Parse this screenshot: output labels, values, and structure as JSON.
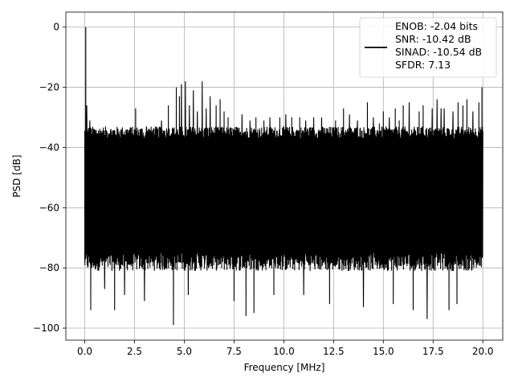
{
  "chart_data": {
    "type": "line",
    "xlabel": "Frequency [MHz]",
    "ylabel": "PSD [dB]",
    "xlim": [
      -0.95,
      21.0
    ],
    "ylim": [
      -104,
      5
    ],
    "xticks": [
      0.0,
      2.5,
      5.0,
      7.5,
      10.0,
      12.5,
      15.0,
      17.5,
      20.0
    ],
    "xtick_labels": [
      "0.0",
      "2.5",
      "5.0",
      "7.5",
      "10.0",
      "12.5",
      "15.0",
      "17.5",
      "20.0"
    ],
    "yticks": [
      0,
      -20,
      -40,
      -60,
      -80,
      -100
    ],
    "ytick_labels": [
      "0",
      "−20",
      "−40",
      "−60",
      "−80",
      "−100"
    ],
    "grid": true,
    "legend_position": "upper-right",
    "legend_entries": [
      "ENOB: -2.04 bits",
      "SNR: -10.42 dB",
      "SINAD: -10.54 dB",
      "SFDR: 7.13"
    ],
    "series": [
      {
        "color": "#000000",
        "noise_band": {
          "x_range": [
            0.0,
            20.0
          ],
          "top": -36,
          "bottom": -79
        },
        "dc_peak": {
          "x": 0.05,
          "y": 0.0
        },
        "spur_peaks": [
          {
            "x": 0.1,
            "y": -26
          },
          {
            "x": 0.25,
            "y": -31
          },
          {
            "x": 2.25,
            "y": -34
          },
          {
            "x": 2.55,
            "y": -27
          },
          {
            "x": 3.1,
            "y": -33
          },
          {
            "x": 3.45,
            "y": -34
          },
          {
            "x": 3.85,
            "y": -31
          },
          {
            "x": 4.2,
            "y": -26
          },
          {
            "x": 4.45,
            "y": -22
          },
          {
            "x": 4.6,
            "y": -20
          },
          {
            "x": 4.75,
            "y": -23
          },
          {
            "x": 4.85,
            "y": -19
          },
          {
            "x": 5.05,
            "y": -18
          },
          {
            "x": 5.25,
            "y": -26
          },
          {
            "x": 5.45,
            "y": -21
          },
          {
            "x": 5.65,
            "y": -28
          },
          {
            "x": 5.9,
            "y": -18
          },
          {
            "x": 6.1,
            "y": -27
          },
          {
            "x": 6.3,
            "y": -23
          },
          {
            "x": 6.6,
            "y": -26
          },
          {
            "x": 6.8,
            "y": -24
          },
          {
            "x": 7.0,
            "y": -28
          },
          {
            "x": 7.2,
            "y": -30
          },
          {
            "x": 7.5,
            "y": -27
          },
          {
            "x": 7.9,
            "y": -29
          },
          {
            "x": 8.3,
            "y": -31
          },
          {
            "x": 8.6,
            "y": -30
          },
          {
            "x": 9.0,
            "y": -31
          },
          {
            "x": 9.3,
            "y": -30
          },
          {
            "x": 9.8,
            "y": -30
          },
          {
            "x": 10.1,
            "y": -29
          },
          {
            "x": 10.4,
            "y": -30
          },
          {
            "x": 10.8,
            "y": -30
          },
          {
            "x": 11.1,
            "y": -31
          },
          {
            "x": 11.5,
            "y": -30
          },
          {
            "x": 11.9,
            "y": -30
          },
          {
            "x": 12.3,
            "y": -30
          },
          {
            "x": 12.6,
            "y": -31
          },
          {
            "x": 13.0,
            "y": -27
          },
          {
            "x": 13.3,
            "y": -29
          },
          {
            "x": 13.7,
            "y": -31
          },
          {
            "x": 14.0,
            "y": -27
          },
          {
            "x": 14.2,
            "y": -25
          },
          {
            "x": 14.5,
            "y": -30
          },
          {
            "x": 14.8,
            "y": -32
          },
          {
            "x": 15.0,
            "y": -28
          },
          {
            "x": 15.3,
            "y": -30
          },
          {
            "x": 15.6,
            "y": -27
          },
          {
            "x": 15.8,
            "y": -31
          },
          {
            "x": 16.0,
            "y": -26
          },
          {
            "x": 16.3,
            "y": -25
          },
          {
            "x": 16.5,
            "y": -23
          },
          {
            "x": 16.8,
            "y": -28
          },
          {
            "x": 17.0,
            "y": -26
          },
          {
            "x": 17.2,
            "y": -24
          },
          {
            "x": 17.45,
            "y": -27
          },
          {
            "x": 17.7,
            "y": -24
          },
          {
            "x": 17.9,
            "y": -27
          },
          {
            "x": 18.05,
            "y": -27
          },
          {
            "x": 18.3,
            "y": -23
          },
          {
            "x": 18.5,
            "y": -28
          },
          {
            "x": 18.75,
            "y": -25
          },
          {
            "x": 19.0,
            "y": -26
          },
          {
            "x": 19.2,
            "y": -24
          },
          {
            "x": 19.5,
            "y": -28
          },
          {
            "x": 19.8,
            "y": -25
          },
          {
            "x": 19.95,
            "y": -20
          }
        ],
        "deep_dips": [
          {
            "x": 0.3,
            "y": -94
          },
          {
            "x": 1.0,
            "y": -87
          },
          {
            "x": 1.5,
            "y": -94
          },
          {
            "x": 2.0,
            "y": -89
          },
          {
            "x": 3.0,
            "y": -91
          },
          {
            "x": 4.45,
            "y": -99
          },
          {
            "x": 5.2,
            "y": -89
          },
          {
            "x": 7.5,
            "y": -91
          },
          {
            "x": 8.1,
            "y": -96
          },
          {
            "x": 8.5,
            "y": -95
          },
          {
            "x": 9.5,
            "y": -89
          },
          {
            "x": 11.0,
            "y": -89
          },
          {
            "x": 12.3,
            "y": -92
          },
          {
            "x": 14.0,
            "y": -93
          },
          {
            "x": 15.5,
            "y": -92
          },
          {
            "x": 16.5,
            "y": -94
          },
          {
            "x": 17.2,
            "y": -97
          },
          {
            "x": 18.3,
            "y": -94
          },
          {
            "x": 18.7,
            "y": -92
          }
        ]
      }
    ]
  }
}
